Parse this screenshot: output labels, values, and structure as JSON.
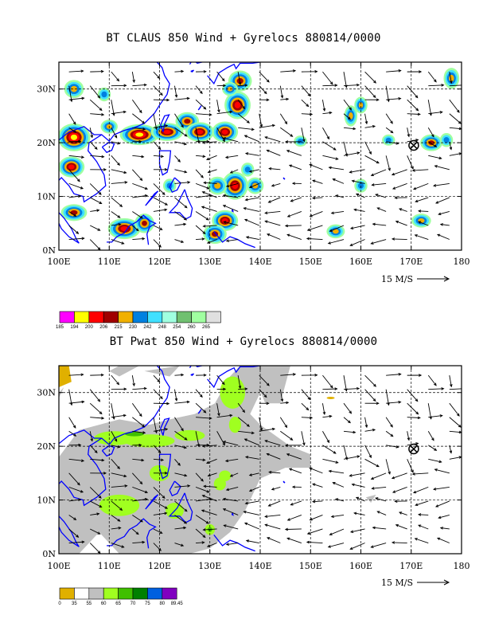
{
  "panels": [
    {
      "id": "top",
      "title": "BT CLAUS 850 Wind + Gyrelocs 880814/0000",
      "x_ticks": [
        "100E",
        "110E",
        "120E",
        "130E",
        "140E",
        "150E",
        "160E",
        "170E",
        "180"
      ],
      "y_ticks": [
        "0N",
        "10N",
        "20N",
        "30N"
      ],
      "vector_scale_label": "15 M/S",
      "gyre_marker": {
        "lon": 170.5,
        "lat": 19.5
      },
      "colorbar": {
        "labels": [
          "185",
          "194",
          "200",
          "206",
          "215",
          "230",
          "242",
          "248",
          "254",
          "260",
          "265"
        ],
        "colors": [
          "#ff00ff",
          "#ffff00",
          "#ff0000",
          "#a00000",
          "#f0b000",
          "#0080e0",
          "#40e0ff",
          "#a0ffe0",
          "#70c070",
          "#a0ffa0",
          "#e0e0e0"
        ]
      }
    },
    {
      "id": "bottom",
      "title": "BT Pwat 850 Wind + Gyrelocs 880814/0000",
      "x_ticks": [
        "100E",
        "110E",
        "120E",
        "130E",
        "140E",
        "150E",
        "160E",
        "170E",
        "180"
      ],
      "y_ticks": [
        "0N",
        "10N",
        "20N",
        "30N"
      ],
      "vector_scale_label": "15 M/S",
      "gyre_marker": {
        "lon": 170.5,
        "lat": 19.5
      },
      "colorbar": {
        "labels": [
          "0",
          "35",
          "55",
          "60",
          "65",
          "70",
          "75",
          "80",
          "89.45"
        ],
        "colors": [
          "#e0b000",
          "#ffffff",
          "#c0c0c0",
          "#a0ff20",
          "#40c000",
          "#008000",
          "#0060e0",
          "#8000c0"
        ]
      }
    }
  ]
}
